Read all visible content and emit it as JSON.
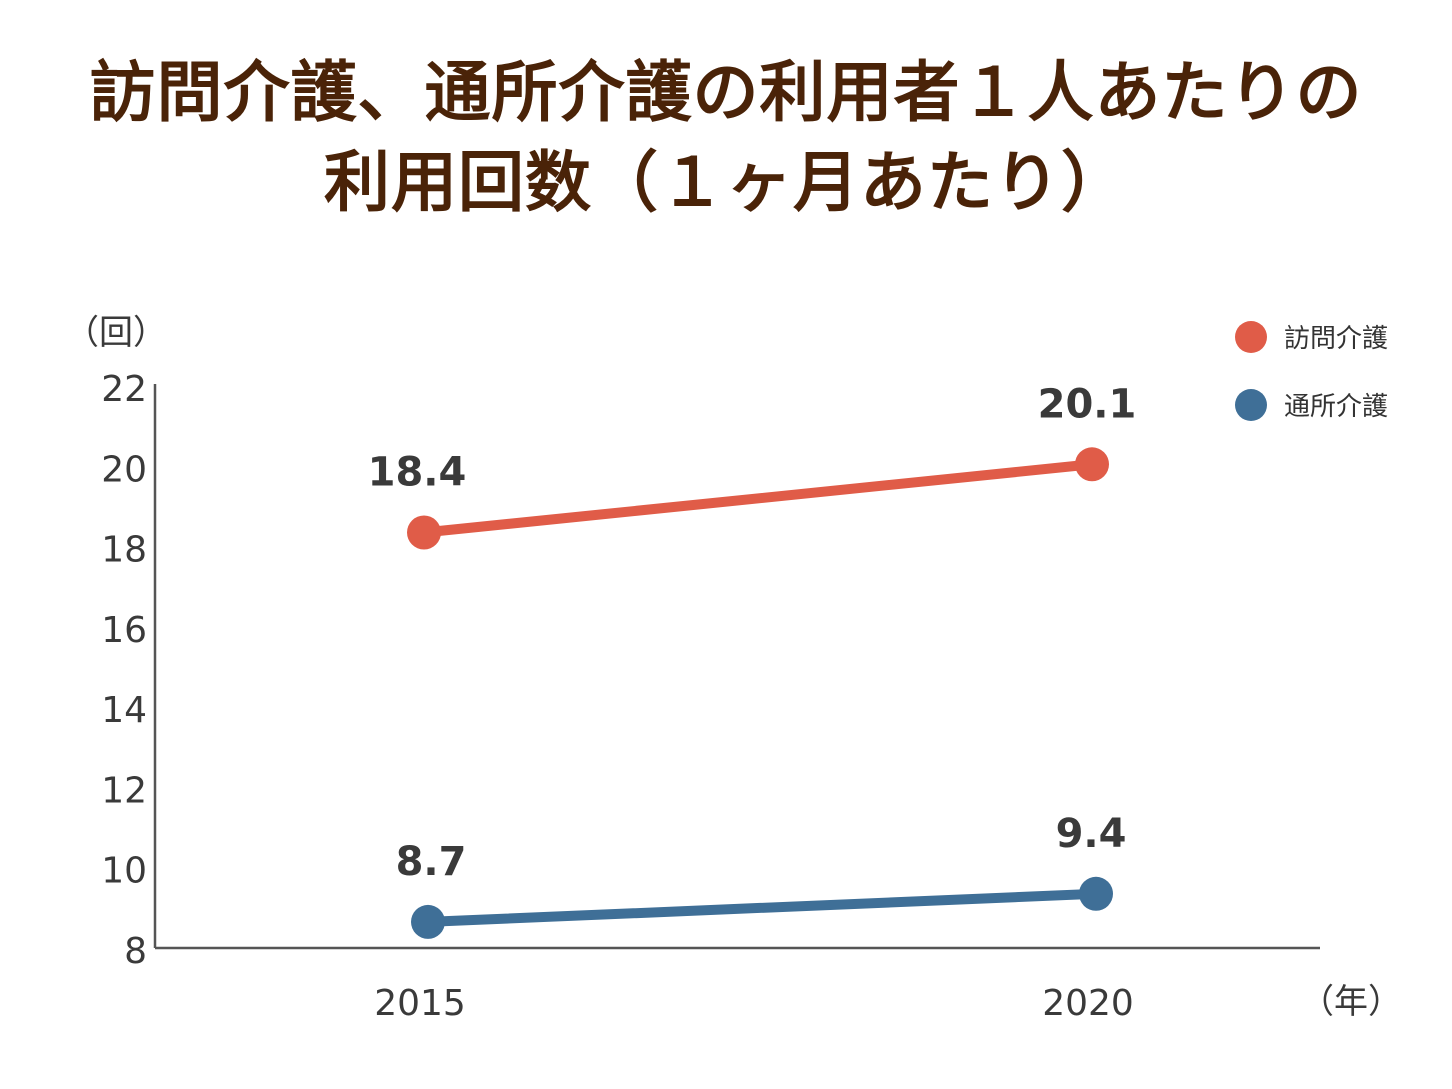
{
  "title_lines": [
    "訪問介護、通所介護の利用者１人あたりの",
    "利用回数（１ヶ月あたり）"
  ],
  "chart_data": {
    "type": "line",
    "title": "訪問介護、通所介護の利用者１人あたりの利用回数（１ヶ月あたり）",
    "x": [
      "2015",
      "2020"
    ],
    "xunit": "（年）",
    "yunit": "（回）",
    "ylim": [
      8,
      22
    ],
    "yticks": [
      "22",
      "20",
      "18",
      "16",
      "14",
      "12",
      "10",
      "8"
    ],
    "grid": false,
    "legend_position": "top-right",
    "series": [
      {
        "name": "訪問介護",
        "values": [
          18.4,
          20.1
        ],
        "labels": [
          "18.4",
          "20.1"
        ],
        "color": "#e05c48"
      },
      {
        "name": "通所介護",
        "values": [
          8.7,
          9.4
        ],
        "labels": [
          "8.7",
          "9.4"
        ],
        "color": "#3f6f97"
      }
    ]
  }
}
